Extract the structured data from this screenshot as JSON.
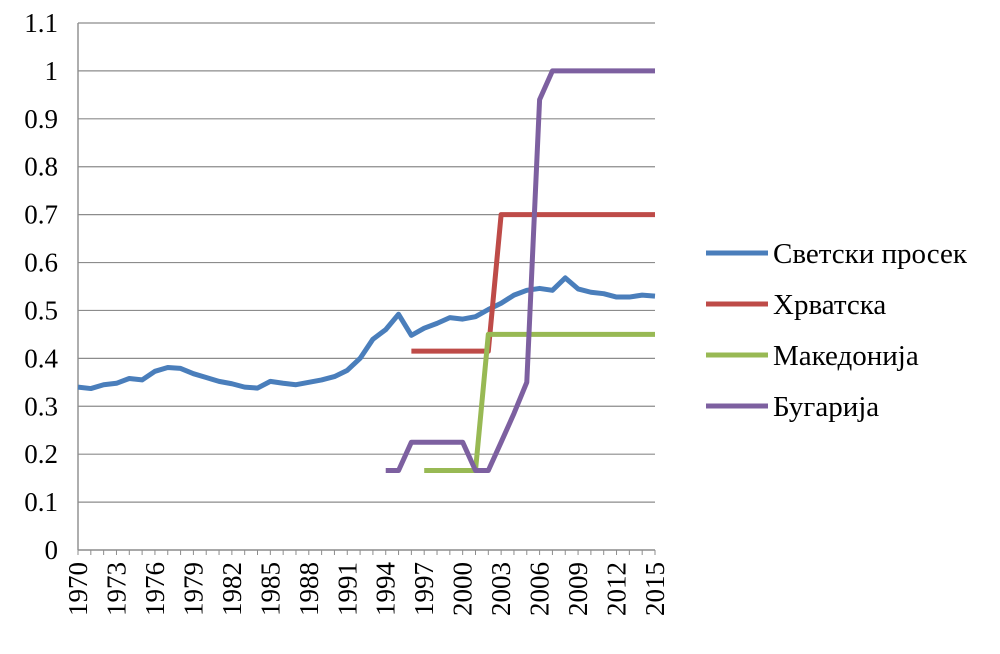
{
  "chart_data": {
    "type": "line",
    "title": "",
    "xlabel": "",
    "ylabel": "",
    "x": [
      1970,
      1971,
      1972,
      1973,
      1974,
      1975,
      1976,
      1977,
      1978,
      1979,
      1980,
      1981,
      1982,
      1983,
      1984,
      1985,
      1986,
      1987,
      1988,
      1989,
      1990,
      1991,
      1992,
      1993,
      1994,
      1995,
      1996,
      1997,
      1998,
      1999,
      2000,
      2001,
      2002,
      2003,
      2004,
      2005,
      2006,
      2007,
      2008,
      2009,
      2010,
      2011,
      2012,
      2013,
      2014,
      2015
    ],
    "x_tick_labels": [
      "1970",
      "1973",
      "1976",
      "1979",
      "1982",
      "1985",
      "1988",
      "1991",
      "1994",
      "1997",
      "2000",
      "2003",
      "2006",
      "2009",
      "2012",
      "2015"
    ],
    "ylim": [
      0,
      1.1
    ],
    "y_ticks": [
      0,
      0.1,
      0.2,
      0.3,
      0.4,
      0.5,
      0.6,
      0.7,
      0.8,
      0.9,
      1,
      1.1
    ],
    "y_tick_labels": [
      "0",
      "0.1",
      "0.2",
      "0.3",
      "0.4",
      "0.5",
      "0.6",
      "0.7",
      "0.8",
      "0.9",
      "1",
      "1.1"
    ],
    "grid": "horizontal",
    "legend_position": "right",
    "series": [
      {
        "name": "Светски просек",
        "color": "#4a7ebb",
        "values": [
          0.34,
          0.337,
          0.345,
          0.348,
          0.358,
          0.355,
          0.373,
          0.381,
          0.379,
          0.368,
          0.36,
          0.352,
          0.347,
          0.34,
          0.338,
          0.352,
          0.348,
          0.345,
          0.35,
          0.355,
          0.362,
          0.375,
          0.4,
          0.44,
          0.46,
          0.492,
          0.448,
          0.463,
          0.473,
          0.485,
          0.482,
          0.487,
          0.502,
          0.515,
          0.532,
          0.542,
          0.546,
          0.542,
          0.568,
          0.545,
          0.538,
          0.535,
          0.528,
          0.528,
          0.532,
          0.53
        ]
      },
      {
        "name": "Хрватска",
        "color": "#be4b48",
        "values": [
          null,
          null,
          null,
          null,
          null,
          null,
          null,
          null,
          null,
          null,
          null,
          null,
          null,
          null,
          null,
          null,
          null,
          null,
          null,
          null,
          null,
          null,
          null,
          null,
          null,
          null,
          0.415,
          0.415,
          0.415,
          0.415,
          0.415,
          0.415,
          0.415,
          0.7,
          0.7,
          0.7,
          0.7,
          0.7,
          0.7,
          0.7,
          0.7,
          0.7,
          0.7,
          0.7,
          0.7,
          0.7
        ]
      },
      {
        "name": "Македонија",
        "color": "#98b954",
        "values": [
          null,
          null,
          null,
          null,
          null,
          null,
          null,
          null,
          null,
          null,
          null,
          null,
          null,
          null,
          null,
          null,
          null,
          null,
          null,
          null,
          null,
          null,
          null,
          null,
          null,
          null,
          null,
          0.166,
          0.166,
          0.166,
          0.166,
          0.166,
          0.45,
          0.45,
          0.45,
          0.45,
          0.45,
          0.45,
          0.45,
          0.45,
          0.45,
          0.45,
          0.45,
          0.45,
          0.45,
          0.45
        ]
      },
      {
        "name": "Бугарија",
        "color": "#7d60a0",
        "values": [
          null,
          null,
          null,
          null,
          null,
          null,
          null,
          null,
          null,
          null,
          null,
          null,
          null,
          null,
          null,
          null,
          null,
          null,
          null,
          null,
          null,
          null,
          null,
          null,
          0.166,
          0.166,
          0.225,
          0.225,
          0.225,
          0.225,
          0.225,
          0.166,
          0.166,
          0.225,
          0.285,
          0.35,
          0.94,
          1,
          1,
          1,
          1,
          1,
          1,
          1,
          1,
          1
        ]
      }
    ]
  }
}
